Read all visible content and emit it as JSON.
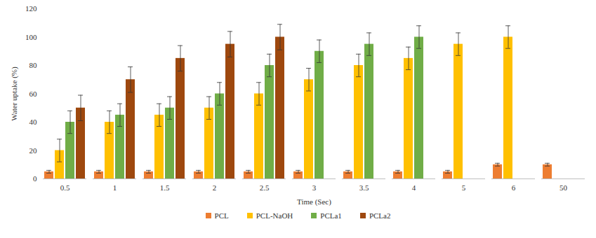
{
  "chart_data": {
    "type": "bar",
    "x_label": "Time (Sec)",
    "y_label": "Water uptake (%)",
    "categories": [
      "0.5",
      "1",
      "1.5",
      "2",
      "2.5",
      "3",
      "3.5",
      "4",
      "5",
      "6",
      "50"
    ],
    "series": [
      {
        "name": "PCL",
        "color": "#ed7d31",
        "values": [
          5,
          5,
          5,
          5,
          5,
          5,
          5,
          5,
          5,
          10,
          10
        ],
        "errors": [
          1,
          1,
          1,
          1,
          1,
          1,
          1,
          1,
          1,
          1,
          1
        ]
      },
      {
        "name": "PCL-NaOH",
        "color": "#ffc000",
        "values": [
          20,
          40,
          45,
          50,
          60,
          70,
          80,
          85,
          95,
          100,
          null
        ],
        "errors": [
          8,
          8,
          8,
          8,
          8,
          8,
          8,
          8,
          8,
          8,
          null
        ]
      },
      {
        "name": "PCLa1",
        "color": "#70ad47",
        "values": [
          40,
          45,
          50,
          60,
          80,
          90,
          95,
          100,
          null,
          null,
          null
        ],
        "errors": [
          8,
          8,
          8,
          8,
          8,
          8,
          8,
          8,
          null,
          null,
          null
        ]
      },
      {
        "name": "PCLa2",
        "color": "#9e480e",
        "values": [
          50,
          70,
          85,
          95,
          100,
          null,
          null,
          null,
          null,
          null,
          null
        ],
        "errors": [
          9,
          9,
          9,
          9,
          9,
          null,
          null,
          null,
          null,
          null,
          null
        ]
      }
    ],
    "ylim": [
      0,
      120
    ],
    "yticks": [
      0,
      20,
      40,
      60,
      80,
      100,
      120
    ],
    "grid": false,
    "legend": "bottom"
  }
}
